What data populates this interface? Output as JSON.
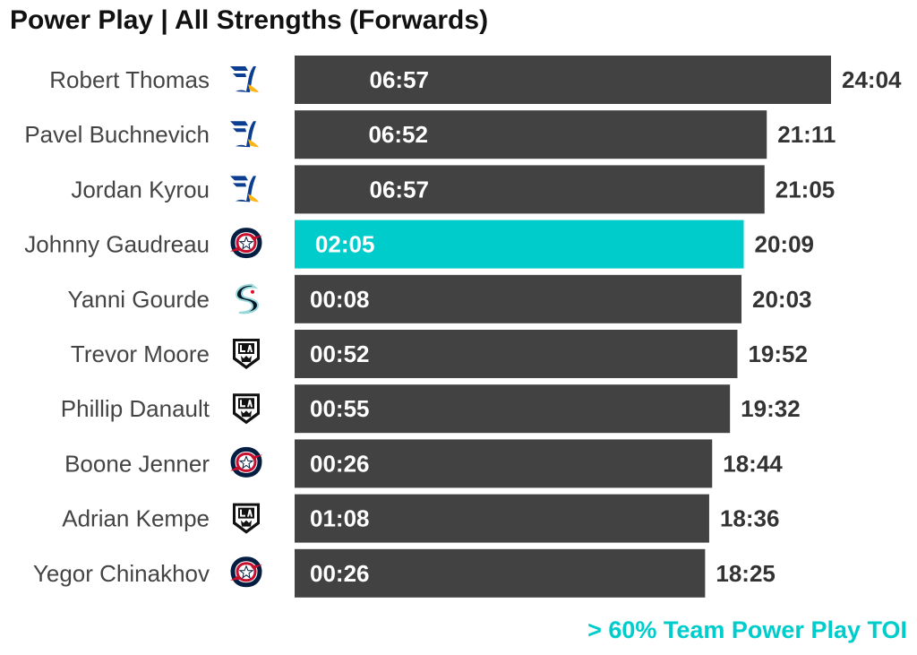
{
  "title": "Power Play | All Strengths (Forwards)",
  "footnote": "> 60% Team Power Play TOI",
  "colors": {
    "bar": "#424242",
    "highlight": "#00cccc",
    "player_label": "#444444",
    "total_label": "#333333",
    "inner_label": "#ffffff"
  },
  "chart_data": {
    "type": "bar",
    "orientation": "horizontal",
    "title": "Power Play | All Strengths (Forwards)",
    "xlabel": "",
    "ylabel": "",
    "categories": [
      "Robert Thomas",
      "Pavel Buchnevich",
      "Jordan Kyrou",
      "Johnny Gaudreau",
      "Yanni Gourde",
      "Trevor Moore",
      "Phillip Danault",
      "Boone Jenner",
      "Adrian Kempe",
      "Yegor Chinakhov"
    ],
    "teams": [
      "stl-blues-logo",
      "stl-blues-logo",
      "stl-blues-logo",
      "cbj-blue-jackets-logo",
      "sea-kraken-logo",
      "la-kings-logo",
      "la-kings-logo",
      "cbj-blue-jackets-logo",
      "la-kings-logo",
      "cbj-blue-jackets-logo"
    ],
    "values_total_toi": [
      "24:04",
      "21:11",
      "21:05",
      "20:09",
      "20:03",
      "19:52",
      "19:32",
      "18:44",
      "18:36",
      "18:25"
    ],
    "values_pp_toi": [
      "06:57",
      "06:52",
      "06:57",
      "02:05",
      "00:08",
      "00:52",
      "00:55",
      "00:26",
      "01:08",
      "00:26"
    ],
    "highlight": [
      false,
      false,
      false,
      true,
      false,
      false,
      false,
      false,
      false,
      false
    ],
    "xlim_seconds": [
      0,
      1444
    ],
    "grid": false,
    "legend": "none"
  }
}
